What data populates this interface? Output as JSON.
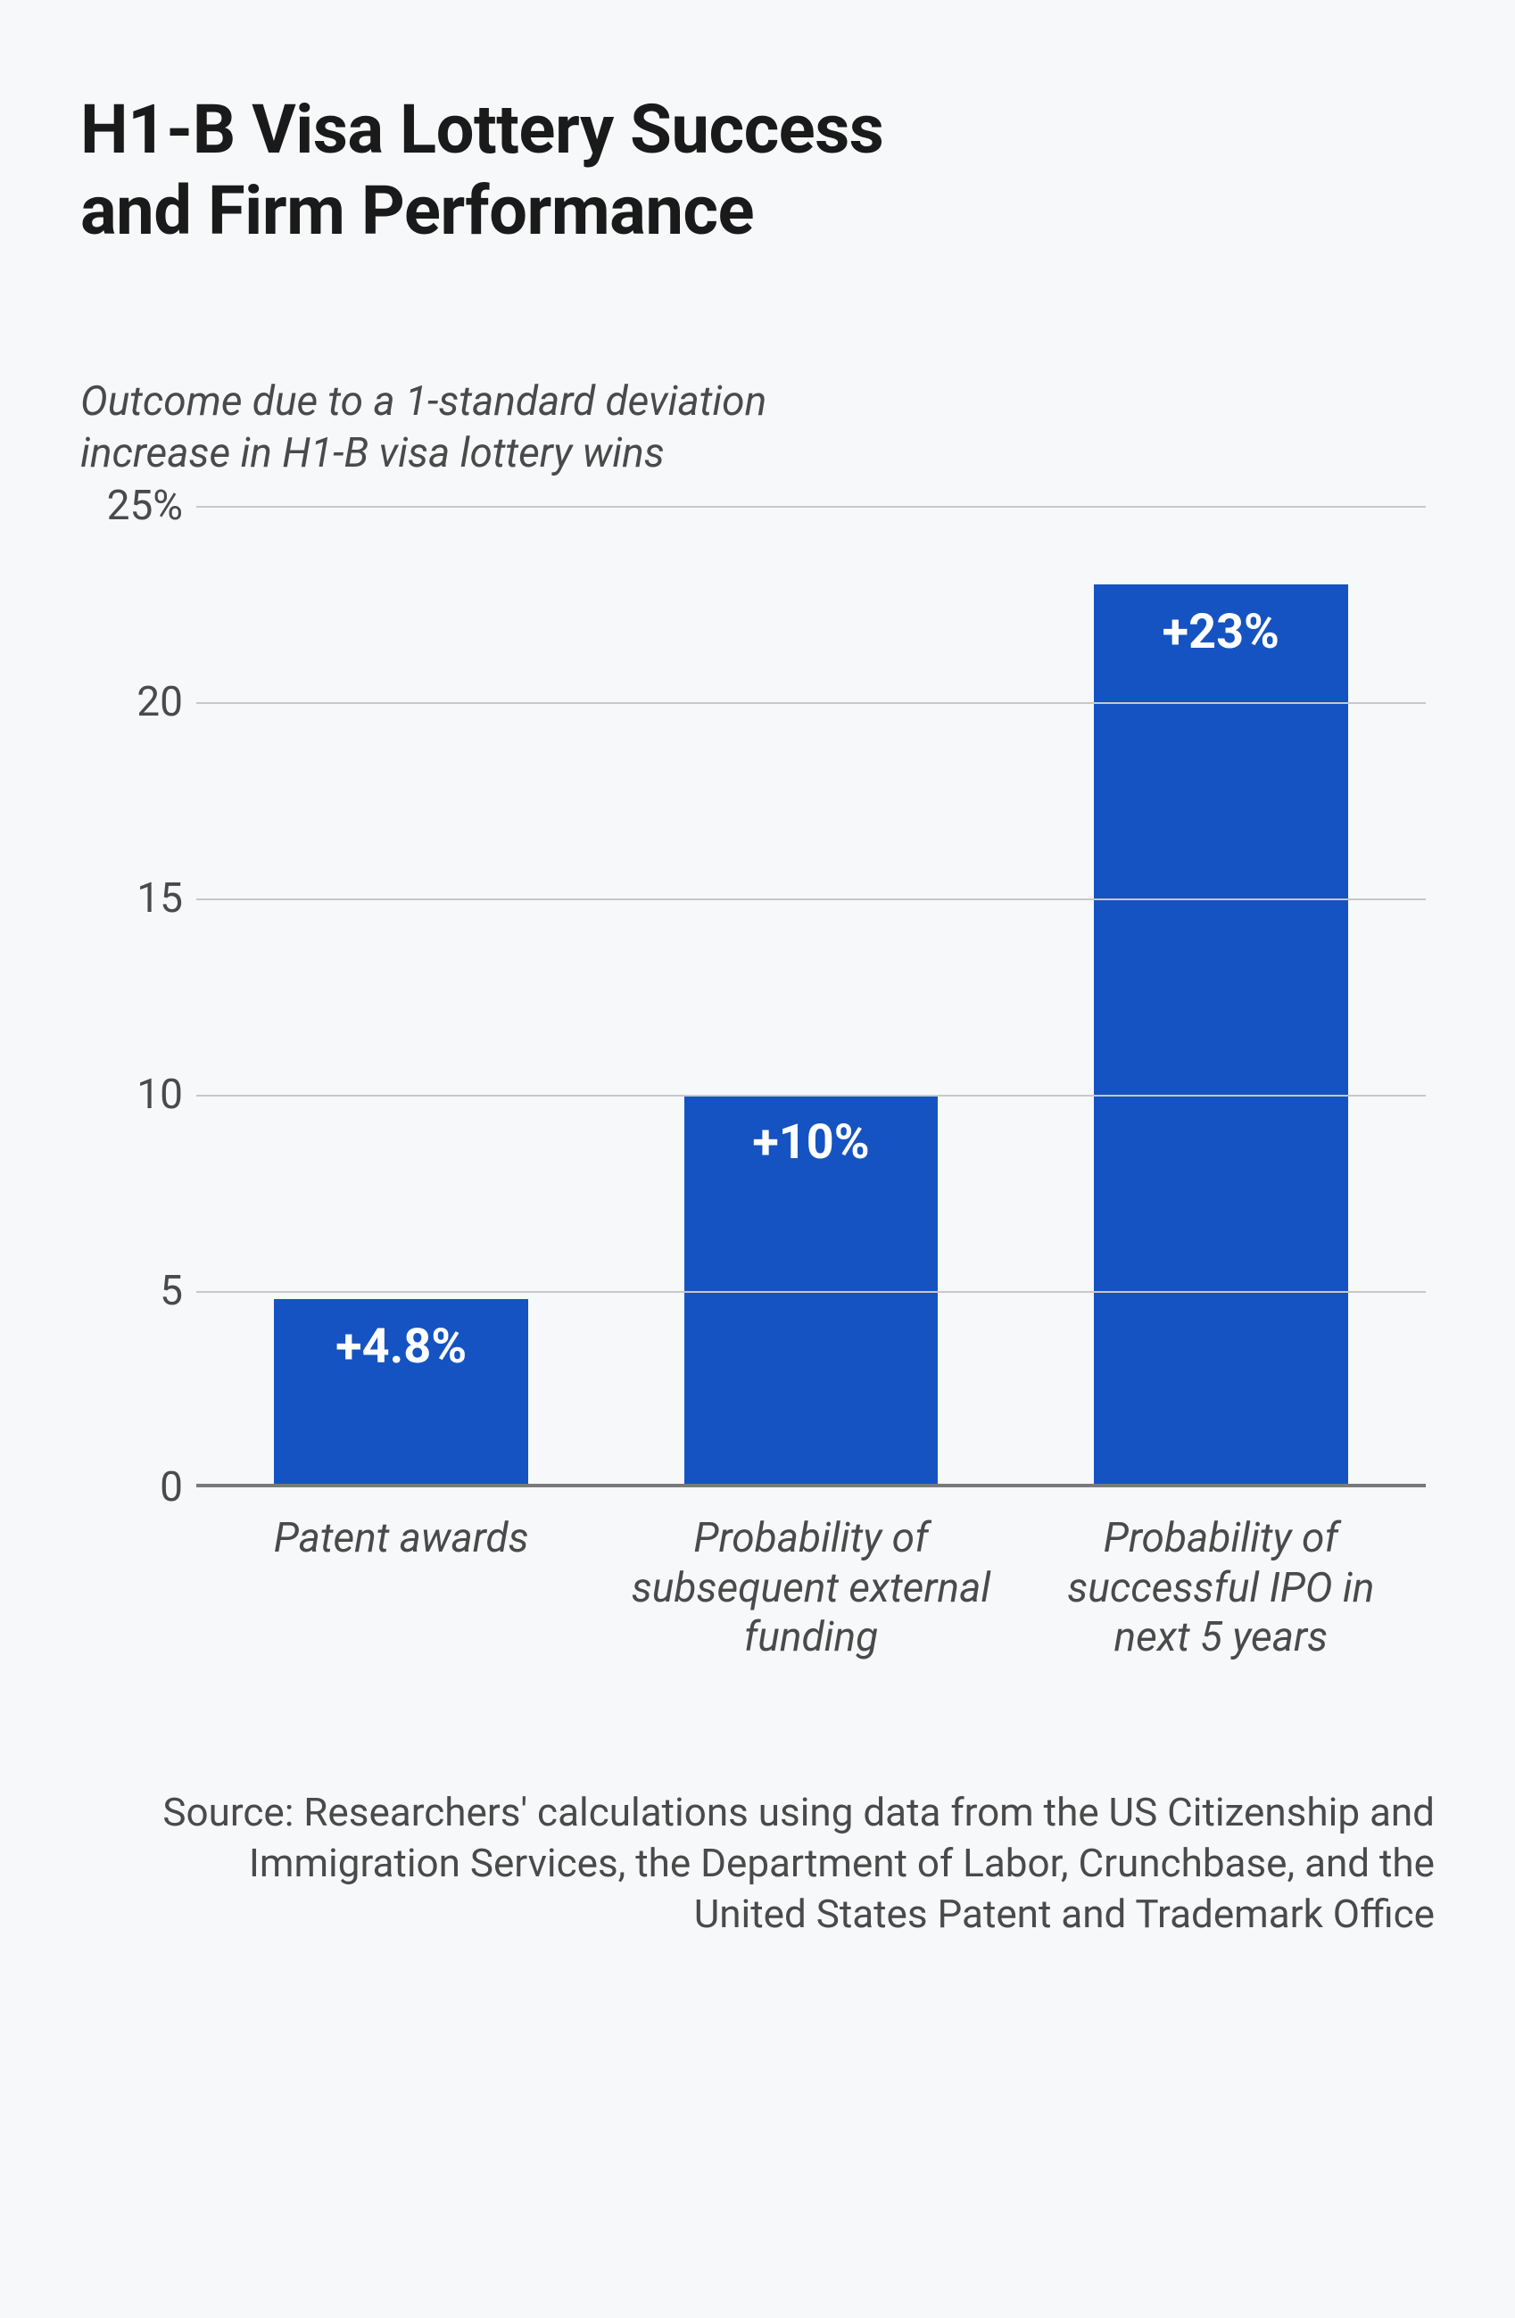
{
  "title_lines": [
    "H1-B Visa Lottery Success",
    "and Firm Performance"
  ],
  "subtitle_lines": [
    "Outcome due to a 1-standard deviation",
    "increase in H1-B visa lottery wins"
  ],
  "chart": {
    "type": "bar",
    "ymin": 0,
    "ymax": 25,
    "ytick_step": 5,
    "yticks": [
      {
        "v": 25,
        "label": "25%"
      },
      {
        "v": 20,
        "label": "20"
      },
      {
        "v": 15,
        "label": "15"
      },
      {
        "v": 10,
        "label": "10"
      },
      {
        "v": 5,
        "label": "5"
      },
      {
        "v": 0,
        "label": "0"
      }
    ],
    "grid_color": "#c8c8c8",
    "baseline_color": "#7a7a7a",
    "background_color": "#f7f8f9",
    "bar_color": "#1553c2",
    "bar_label_color": "#ffffff",
    "bar_label_fontsize": 54,
    "bar_width_pct": 62,
    "bars": [
      {
        "value": 4.8,
        "label": "+4.8%",
        "xlabel": "Patent awards"
      },
      {
        "value": 10,
        "label": "+10%",
        "xlabel": "Probability of subsequent external funding"
      },
      {
        "value": 23,
        "label": "+23%",
        "xlabel": "Probability of successful IPO in next 5 years"
      }
    ]
  },
  "source": "Source: Researchers' calculations using data from the US Citizenship and Immigration Services, the Department of Labor, Crunchbase, and the United States Patent and Trademark Office",
  "typography": {
    "title_fontsize": 76,
    "title_weight": 700,
    "subtitle_fontsize": 46,
    "axis_fontsize": 46,
    "source_fontsize": 44,
    "text_color": "#4a4a4a",
    "title_color": "#1a1a1a"
  }
}
